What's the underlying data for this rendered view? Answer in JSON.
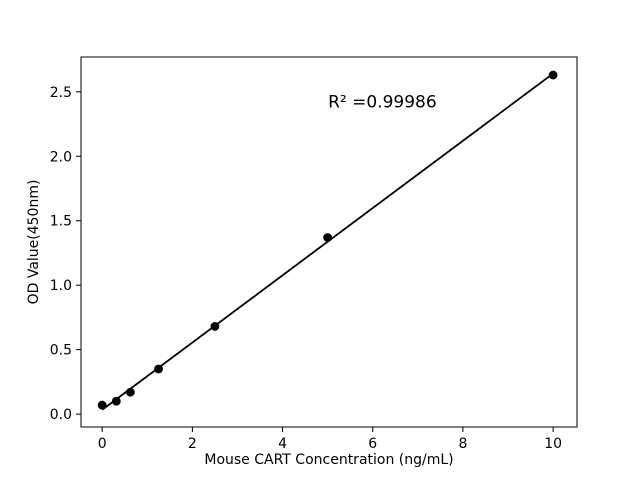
{
  "figure": {
    "background": "#ffffff",
    "foreground": "#000000"
  },
  "chart_data": {
    "type": "scatter",
    "title": "",
    "xlabel": "Mouse CART Concentration (ng/mL)",
    "ylabel": "OD Value(450nm)",
    "annotation": {
      "text": "R² =0.99986",
      "x": 5.01,
      "y": 2.38
    },
    "x": [
      0,
      0.313,
      0.625,
      1.25,
      2.5,
      5,
      10
    ],
    "y": [
      0.07,
      0.1,
      0.17,
      0.35,
      0.68,
      1.37,
      2.63
    ],
    "xlim": [
      -0.47,
      10.53
    ],
    "ylim": [
      -0.1,
      2.77
    ],
    "xticks": [
      0,
      2,
      4,
      6,
      8,
      10
    ],
    "xtick_labels": [
      "0",
      "2",
      "4",
      "6",
      "8",
      "10"
    ],
    "yticks": [
      0,
      0.5,
      1,
      1.5,
      2,
      2.5
    ],
    "ytick_labels": [
      "0.0",
      "0.5",
      "1.0",
      "1.5",
      "2.0",
      "2.5"
    ],
    "fit_line": {
      "slope": 0.2608,
      "intercept": 0.0336,
      "x_start": 0,
      "x_end": 10,
      "r_squared": 0.99986
    },
    "marker_color": "#000000",
    "line_color": "#000000",
    "grid": false,
    "legend": null
  }
}
